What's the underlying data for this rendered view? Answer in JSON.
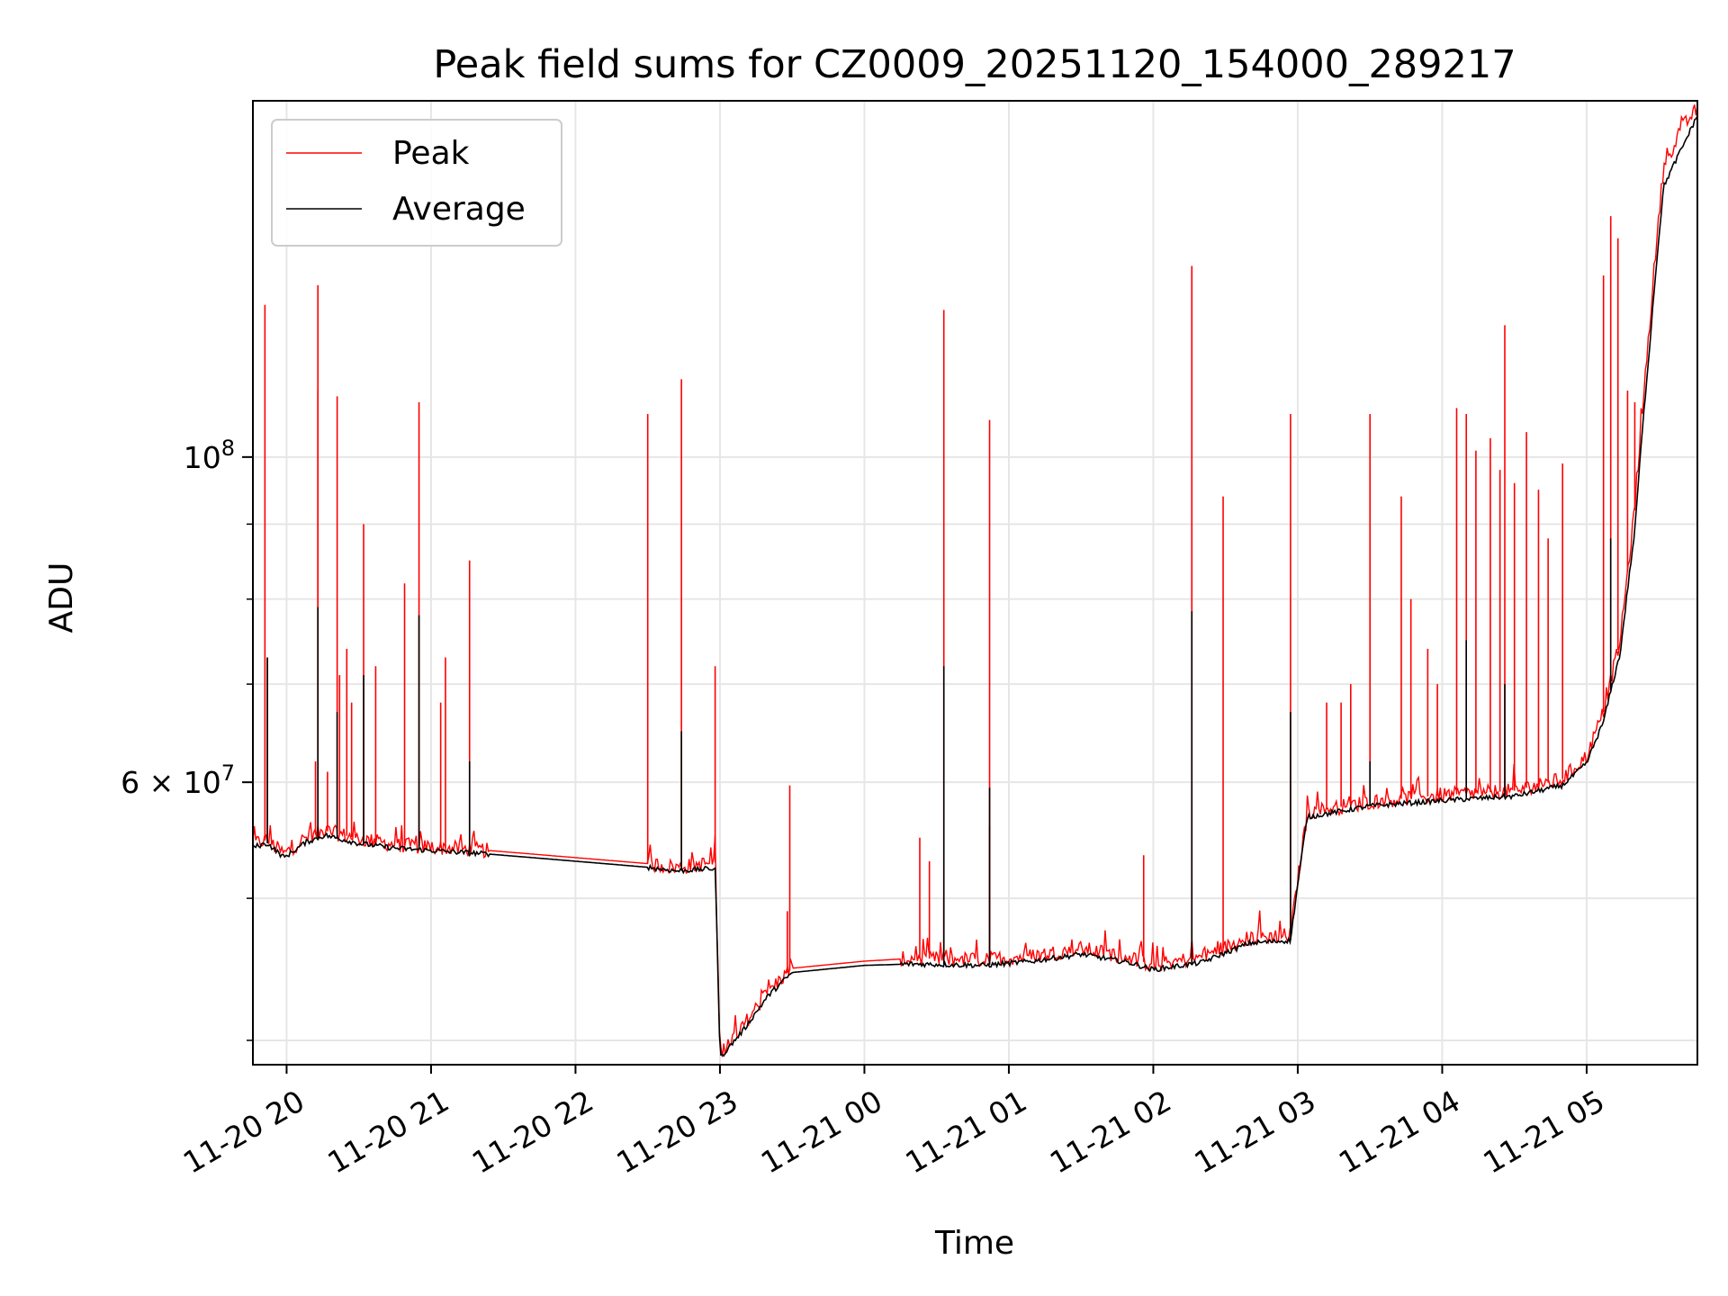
{
  "chart_data": {
    "type": "line",
    "title": "Peak field sums for CZ0009_20251120_154000_289217",
    "xlabel": "Time",
    "ylabel": "ADU",
    "y_scale": "log",
    "ylim": [
      38500000,
      175000000
    ],
    "xlim": [
      "2025-11-20 19:46",
      "2025-11-21 05:46"
    ],
    "grid": true,
    "legend_position": "upper-left",
    "x_ticks": [
      "11-20 20",
      "11-20 21",
      "11-20 22",
      "11-20 23",
      "11-21 00",
      "11-21 01",
      "11-21 02",
      "11-21 03",
      "11-21 04",
      "11-21 05"
    ],
    "x_tick_times": [
      "2025-11-20 20:00",
      "2025-11-20 21:00",
      "2025-11-20 22:00",
      "2025-11-20 23:00",
      "2025-11-21 00:00",
      "2025-11-21 01:00",
      "2025-11-21 02:00",
      "2025-11-21 03:00",
      "2025-11-21 04:00",
      "2025-11-21 05:00"
    ],
    "y_ticks": [
      {
        "value": 100000000,
        "base": "10",
        "exp": "8"
      },
      {
        "value": 60000000,
        "mant": "6",
        "base": "10",
        "exp": "7"
      }
    ],
    "y_minor_ticks": [
      40000000,
      50000000,
      70000000,
      80000000,
      90000000
    ],
    "series": [
      {
        "name": "Peak",
        "color": "#ff0000",
        "baseline": [
          [
            "2025-11-20 19:46",
            54500000
          ],
          [
            "2025-11-20 19:52",
            54800000
          ],
          [
            "2025-11-20 19:59",
            53600000
          ],
          [
            "2025-11-20 20:08",
            55000000
          ],
          [
            "2025-11-20 20:16",
            55600000
          ],
          [
            "2025-11-20 20:30",
            54900000
          ],
          [
            "2025-11-20 20:45",
            54400000
          ],
          [
            "2025-11-20 21:00",
            54200000
          ],
          [
            "2025-11-20 21:24",
            53900000
          ],
          [
            "2025-11-20 22:30",
            52800000
          ],
          [
            "2025-11-20 22:42",
            52500000
          ],
          [
            "2025-11-20 22:58",
            52900000
          ],
          [
            "2025-11-20 23:00",
            39200000
          ],
          [
            "2025-11-20 23:10",
            41000000
          ],
          [
            "2025-11-20 23:20",
            43200000
          ],
          [
            "2025-11-20 23:30",
            44800000
          ],
          [
            "2025-11-21 00:00",
            45300000
          ],
          [
            "2025-11-21 00:20",
            45500000
          ],
          [
            "2025-11-21 00:50",
            45400000
          ],
          [
            "2025-11-21 01:10",
            45700000
          ],
          [
            "2025-11-21 01:30",
            46200000
          ],
          [
            "2025-11-21 01:50",
            45600000
          ],
          [
            "2025-11-21 02:00",
            45000000
          ],
          [
            "2025-11-21 02:20",
            45600000
          ],
          [
            "2025-11-21 02:40",
            47000000
          ],
          [
            "2025-11-21 02:57",
            47200000
          ],
          [
            "2025-11-21 03:04",
            57200000
          ],
          [
            "2025-11-21 03:30",
            58200000
          ],
          [
            "2025-11-21 04:00",
            58800000
          ],
          [
            "2025-11-21 04:30",
            59200000
          ],
          [
            "2025-11-21 04:50",
            60300000
          ],
          [
            "2025-11-21 05:00",
            62500000
          ],
          [
            "2025-11-21 05:07",
            67000000
          ],
          [
            "2025-11-21 05:14",
            75000000
          ],
          [
            "2025-11-21 05:20",
            92000000
          ],
          [
            "2025-11-21 05:26",
            122000000
          ],
          [
            "2025-11-21 05:32",
            158000000
          ],
          [
            "2025-11-21 05:40",
            168000000
          ],
          [
            "2025-11-21 05:46",
            173000000
          ]
        ],
        "spikes": [
          [
            "2025-11-20 19:51",
            127000000
          ],
          [
            "2025-11-20 19:52",
            73000000
          ],
          [
            "2025-11-20 20:12",
            62000000
          ],
          [
            "2025-11-20 20:13",
            111000000
          ],
          [
            "2025-11-20 20:13",
            131000000
          ],
          [
            "2025-11-20 20:17",
            61000000
          ],
          [
            "2025-11-20 20:21",
            110000000
          ],
          [
            "2025-11-20 20:22",
            71000000
          ],
          [
            "2025-11-20 20:25",
            74000000
          ],
          [
            "2025-11-20 20:27",
            68000000
          ],
          [
            "2025-11-20 20:32",
            90000000
          ],
          [
            "2025-11-20 20:37",
            72000000
          ],
          [
            "2025-11-20 20:49",
            82000000
          ],
          [
            "2025-11-20 20:55",
            109000000
          ],
          [
            "2025-11-20 21:04",
            68000000
          ],
          [
            "2025-11-20 21:06",
            73000000
          ],
          [
            "2025-11-20 21:16",
            85000000
          ],
          [
            "2025-11-20 22:30",
            107000000
          ],
          [
            "2025-11-20 22:44",
            113000000
          ],
          [
            "2025-11-20 22:58",
            72000000
          ],
          [
            "2025-11-20 23:28",
            49000000
          ],
          [
            "2025-11-20 23:29",
            59700000
          ],
          [
            "2025-11-21 00:23",
            55000000
          ],
          [
            "2025-11-21 00:27",
            53000000
          ],
          [
            "2025-11-21 00:33",
            50000000
          ],
          [
            "2025-11-21 00:33",
            126000000
          ],
          [
            "2025-11-21 00:52",
            56000000
          ],
          [
            "2025-11-21 00:52",
            106000000
          ],
          [
            "2025-11-21 01:56",
            53500000
          ],
          [
            "2025-11-21 02:16",
            135000000
          ],
          [
            "2025-11-21 02:29",
            94000000
          ],
          [
            "2025-11-21 02:57",
            107000000
          ],
          [
            "2025-11-21 03:12",
            68000000
          ],
          [
            "2025-11-21 03:18",
            68000000
          ],
          [
            "2025-11-21 03:22",
            70000000
          ],
          [
            "2025-11-21 03:30",
            107000000
          ],
          [
            "2025-11-21 03:43",
            94000000
          ],
          [
            "2025-11-21 03:47",
            80000000
          ],
          [
            "2025-11-21 03:54",
            74000000
          ],
          [
            "2025-11-21 03:58",
            70000000
          ],
          [
            "2025-11-21 04:06",
            108000000
          ],
          [
            "2025-11-21 04:10",
            107000000
          ],
          [
            "2025-11-21 04:14",
            101000000
          ],
          [
            "2025-11-21 04:20",
            103000000
          ],
          [
            "2025-11-21 04:24",
            98000000
          ],
          [
            "2025-11-21 04:26",
            123000000
          ],
          [
            "2025-11-21 04:30",
            96000000
          ],
          [
            "2025-11-21 04:35",
            104000000
          ],
          [
            "2025-11-21 04:40",
            95000000
          ],
          [
            "2025-11-21 04:44",
            88000000
          ],
          [
            "2025-11-21 04:50",
            99000000
          ],
          [
            "2025-11-21 05:07",
            133000000
          ],
          [
            "2025-11-21 05:10",
            146000000
          ],
          [
            "2025-11-21 05:13",
            141000000
          ],
          [
            "2025-11-21 05:17",
            111000000
          ],
          [
            "2025-11-21 05:20",
            109000000
          ]
        ]
      },
      {
        "name": "Average",
        "color": "#000000",
        "baseline": [
          [
            "2025-11-20 19:46",
            54200000
          ],
          [
            "2025-11-20 19:52",
            54500000
          ],
          [
            "2025-11-20 19:59",
            53300000
          ],
          [
            "2025-11-20 20:08",
            54600000
          ],
          [
            "2025-11-20 20:16",
            55200000
          ],
          [
            "2025-11-20 20:30",
            54500000
          ],
          [
            "2025-11-20 20:45",
            54100000
          ],
          [
            "2025-11-20 21:00",
            53900000
          ],
          [
            "2025-11-20 21:24",
            53600000
          ],
          [
            "2025-11-20 22:30",
            52500000
          ],
          [
            "2025-11-20 22:42",
            52200000
          ],
          [
            "2025-11-20 22:58",
            52400000
          ],
          [
            "2025-11-20 23:00",
            38900000
          ],
          [
            "2025-11-20 23:10",
            40700000
          ],
          [
            "2025-11-20 23:20",
            42900000
          ],
          [
            "2025-11-20 23:30",
            44500000
          ],
          [
            "2025-11-21 00:00",
            45000000
          ],
          [
            "2025-11-21 00:20",
            45100000
          ],
          [
            "2025-11-21 00:50",
            45000000
          ],
          [
            "2025-11-21 01:10",
            45300000
          ],
          [
            "2025-11-21 01:30",
            45800000
          ],
          [
            "2025-11-21 01:50",
            45200000
          ],
          [
            "2025-11-21 02:00",
            44700000
          ],
          [
            "2025-11-21 02:20",
            45200000
          ],
          [
            "2025-11-21 02:40",
            46600000
          ],
          [
            "2025-11-21 02:57",
            46800000
          ],
          [
            "2025-11-21 03:04",
            56800000
          ],
          [
            "2025-11-21 03:30",
            57800000
          ],
          [
            "2025-11-21 04:00",
            58300000
          ],
          [
            "2025-11-21 04:30",
            58700000
          ],
          [
            "2025-11-21 04:50",
            59700000
          ],
          [
            "2025-11-21 05:00",
            61800000
          ],
          [
            "2025-11-21 05:07",
            66000000
          ],
          [
            "2025-11-21 05:14",
            73500000
          ],
          [
            "2025-11-21 05:20",
            89000000
          ],
          [
            "2025-11-21 05:26",
            118000000
          ],
          [
            "2025-11-21 05:32",
            153000000
          ],
          [
            "2025-11-21 05:40",
            163000000
          ],
          [
            "2025-11-21 05:46",
            171000000
          ]
        ],
        "spikes": [
          [
            "2025-11-20 19:52",
            73000000
          ],
          [
            "2025-11-20 20:13",
            79000000
          ],
          [
            "2025-11-20 20:21",
            67000000
          ],
          [
            "2025-11-20 20:32",
            71000000
          ],
          [
            "2025-11-20 20:55",
            78000000
          ],
          [
            "2025-11-20 21:16",
            62000000
          ],
          [
            "2025-11-20 22:44",
            65000000
          ],
          [
            "2025-11-21 00:33",
            72000000
          ],
          [
            "2025-11-21 00:52",
            59500000
          ],
          [
            "2025-11-21 02:16",
            78500000
          ],
          [
            "2025-11-21 02:57",
            67000000
          ],
          [
            "2025-11-21 03:30",
            62000000
          ],
          [
            "2025-11-21 04:10",
            75000000
          ],
          [
            "2025-11-21 04:26",
            70000000
          ],
          [
            "2025-11-21 05:10",
            88000000
          ]
        ]
      }
    ]
  }
}
